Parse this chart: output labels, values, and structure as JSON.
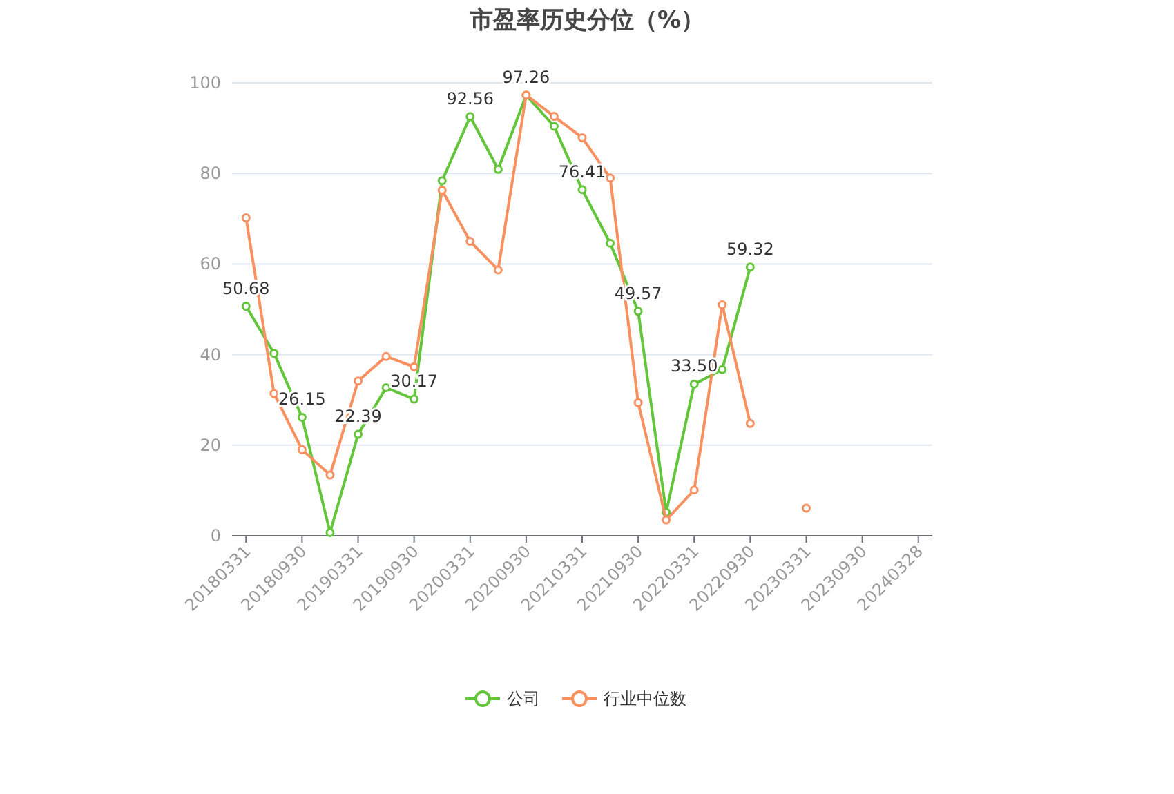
{
  "chart_data": {
    "type": "line",
    "title": "市盈率历史分位（%）",
    "categories": [
      "20180331",
      null,
      "20180930",
      null,
      "20190331",
      null,
      "20190930",
      null,
      "20200331",
      null,
      "20200930",
      null,
      "20210331",
      null,
      "20210930",
      null,
      "20220331",
      null,
      "20220930",
      null,
      "20230331",
      null,
      "20230930",
      null,
      "20240328"
    ],
    "series": [
      {
        "name": "公司",
        "color": "#62c53a",
        "values": [
          50.68,
          40.3,
          26.15,
          0.7,
          22.39,
          32.7,
          30.17,
          78.4,
          92.56,
          80.9,
          97.26,
          90.4,
          76.41,
          64.6,
          49.57,
          5.2,
          33.5,
          36.7,
          59.32,
          null,
          null,
          null,
          null,
          null,
          null
        ],
        "value_labels": [
          "50.68",
          null,
          "26.15",
          null,
          "22.39",
          null,
          "30.17",
          null,
          "92.56",
          null,
          "97.26",
          null,
          "76.41",
          null,
          "49.57",
          null,
          "33.50",
          null,
          "59.32",
          null,
          null,
          null,
          null,
          null,
          null
        ]
      },
      {
        "name": "行业中位数",
        "color": "#f89060",
        "values": [
          70.2,
          31.4,
          19.0,
          13.4,
          34.2,
          39.6,
          37.3,
          76.3,
          65.0,
          58.7,
          97.3,
          92.6,
          87.9,
          79.0,
          29.4,
          3.5,
          10.1,
          51.0,
          24.8,
          null,
          6.1,
          null,
          null,
          null,
          null
        ]
      }
    ],
    "ylim": [
      0,
      100
    ],
    "yticks": [
      0,
      20,
      40,
      60,
      80,
      100
    ],
    "grid": "y",
    "legend": "bottom",
    "marker": "circle"
  }
}
